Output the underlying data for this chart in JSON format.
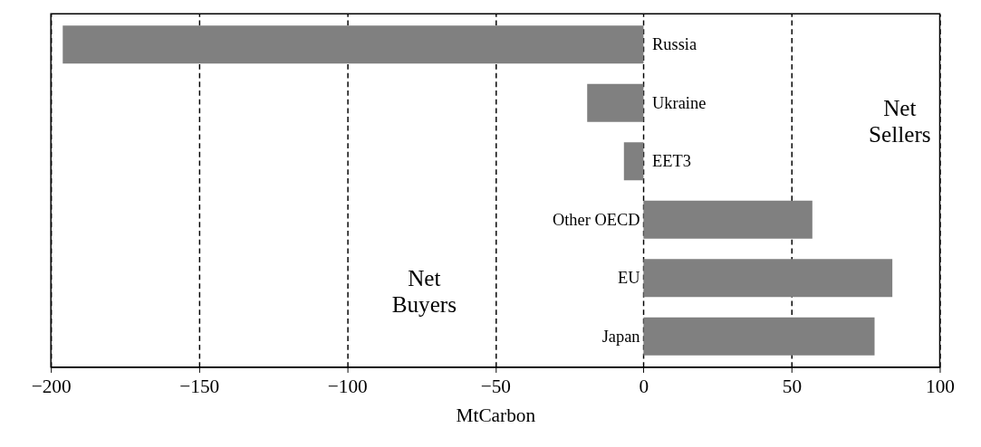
{
  "chart_data": {
    "type": "bar",
    "orientation": "horizontal",
    "xlabel": "MtCarbon",
    "categories": [
      "Russia",
      "Ukraine",
      "EET3",
      "Other OECD",
      "EU",
      "Japan"
    ],
    "values": [
      -196,
      -19,
      -6.6,
      57,
      84,
      78
    ],
    "colors": [
      "#808080",
      "#808080",
      "#808080",
      "#808080",
      "#808080",
      "#808080"
    ],
    "xlim": [
      -200,
      100
    ],
    "xticks": [
      -200,
      -150,
      -100,
      -50,
      0,
      50,
      100
    ],
    "grid": "x",
    "annotations": [
      "Net Sellers",
      "Net Buyers"
    ]
  }
}
